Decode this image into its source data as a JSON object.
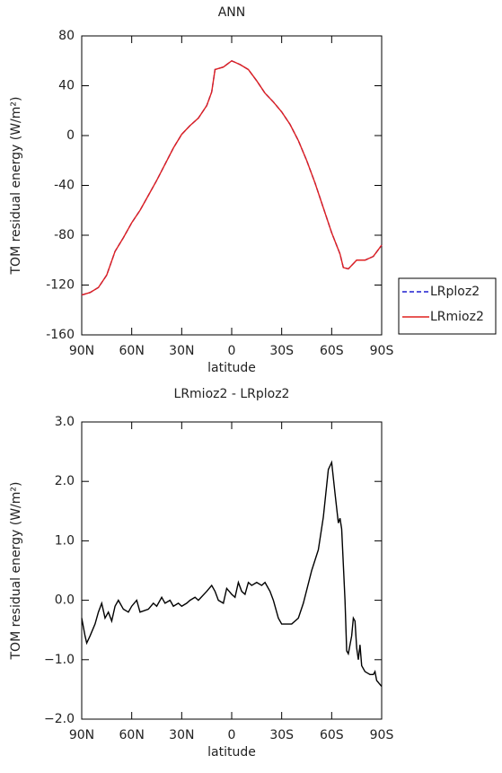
{
  "chart_data": [
    {
      "type": "line",
      "title": "ANN",
      "xlabel": "latitude",
      "ylabel": "TOM residual energy (W/m²)",
      "x": [
        90,
        85,
        80,
        75,
        70,
        65,
        60,
        55,
        50,
        45,
        40,
        35,
        30,
        25,
        20,
        15,
        12,
        10,
        5,
        0,
        -5,
        -10,
        -15,
        -20,
        -25,
        -30,
        -35,
        -40,
        -45,
        -50,
        -55,
        -60,
        -65,
        -67,
        -70,
        -75,
        -80,
        -85,
        -90
      ],
      "xlim": [
        90,
        -90
      ],
      "xticks": [
        {
          "value": 90,
          "label": "90N"
        },
        {
          "value": 60,
          "label": "60N"
        },
        {
          "value": 30,
          "label": "30N"
        },
        0,
        {
          "value": -30,
          "label": "30S"
        },
        {
          "value": -60,
          "label": "60S"
        },
        {
          "value": -90,
          "label": "90S"
        }
      ],
      "ylim": [
        -160,
        80
      ],
      "yticks": [
        -160,
        -120,
        -80,
        -40,
        0,
        40,
        80
      ],
      "legend": "right",
      "series": [
        {
          "name": "LRploz2",
          "color": "#1f1fcf",
          "dash": true,
          "values": [
            -128,
            -126,
            -122,
            -112,
            -93,
            -82,
            -70,
            -60,
            -48,
            -36,
            -23,
            -10,
            1,
            8,
            14,
            24,
            35,
            53,
            55,
            60,
            57,
            53,
            44,
            34,
            27,
            19,
            9,
            -4,
            -20,
            -38,
            -58,
            -78,
            -95,
            -106,
            -107,
            -100,
            -100,
            -97,
            -88
          ]
        },
        {
          "name": "LRmioz2",
          "color": "#e0201f",
          "dash": false,
          "values": [
            -128,
            -126,
            -122,
            -112,
            -93,
            -82,
            -70,
            -60,
            -48,
            -36,
            -23,
            -10,
            1,
            8,
            14,
            24,
            35,
            53,
            55,
            60,
            57,
            53,
            44,
            34,
            27,
            19,
            9,
            -4,
            -20,
            -38,
            -58,
            -78,
            -95,
            -106,
            -107,
            -100,
            -100,
            -97,
            -88
          ]
        }
      ]
    },
    {
      "type": "line",
      "title": "LRmioz2 - LRploz2",
      "xlabel": "latitude",
      "ylabel": "TOM residual energy (W/m²)",
      "x": [
        90,
        88,
        87,
        85,
        82,
        80,
        78,
        76,
        74,
        72,
        70,
        68,
        65,
        62,
        60,
        57,
        55,
        50,
        47,
        45,
        42,
        40,
        37,
        35,
        32,
        30,
        27,
        25,
        22,
        20,
        15,
        12,
        10,
        8,
        5,
        3,
        0,
        -2,
        -4,
        -6,
        -8,
        -10,
        -12,
        -15,
        -18,
        -20,
        -23,
        -25,
        -28,
        -30,
        -33,
        -36,
        -40,
        -43,
        -48,
        -52,
        -55,
        -58,
        -60,
        -62,
        -64,
        -65,
        -66,
        -68,
        -69,
        -70,
        -72,
        -73,
        -74,
        -75,
        -76,
        -77,
        -78,
        -80,
        -83,
        -85,
        -86,
        -87,
        -90
      ],
      "xlim": [
        90,
        -90
      ],
      "xticks": [
        {
          "value": 90,
          "label": "90N"
        },
        {
          "value": 60,
          "label": "60N"
        },
        {
          "value": 30,
          "label": "30N"
        },
        0,
        {
          "value": -30,
          "label": "30S"
        },
        {
          "value": -60,
          "label": "60S"
        },
        {
          "value": -90,
          "label": "90S"
        }
      ],
      "ylim": [
        -2,
        3
      ],
      "yticks": [
        {
          "value": -2,
          "label": "−2.0"
        },
        {
          "value": -1,
          "label": "−1.0"
        },
        {
          "value": 0,
          "label": "0.0"
        },
        {
          "value": 1,
          "label": "1.0"
        },
        {
          "value": 2,
          "label": "2.0"
        },
        {
          "value": 3,
          "label": "3.0"
        }
      ],
      "series": [
        {
          "color": "#000000",
          "values": [
            -0.3,
            -0.6,
            -0.72,
            -0.6,
            -0.4,
            -0.2,
            -0.05,
            -0.3,
            -0.2,
            -0.35,
            -0.1,
            0,
            -0.15,
            -0.2,
            -0.1,
            0,
            -0.2,
            -0.15,
            -0.05,
            -0.1,
            0.05,
            -0.05,
            0,
            -0.1,
            -0.05,
            -0.1,
            -0.05,
            0,
            0.05,
            0,
            0.15,
            0.25,
            0.15,
            0,
            -0.05,
            0.2,
            0.1,
            0.05,
            0.3,
            0.15,
            0.1,
            0.3,
            0.25,
            0.3,
            0.25,
            0.3,
            0.15,
            0,
            -0.3,
            -0.4,
            -0.4,
            -0.4,
            -0.3,
            -0.05,
            0.5,
            0.85,
            1.4,
            2.2,
            2.32,
            1.8,
            1.3,
            1.38,
            1.2,
            0,
            -0.85,
            -0.9,
            -0.6,
            -0.3,
            -0.35,
            -0.8,
            -1,
            -0.75,
            -1.1,
            -1.2,
            -1.25,
            -1.25,
            -1.2,
            -1.35,
            -1.45
          ]
        }
      ]
    }
  ]
}
